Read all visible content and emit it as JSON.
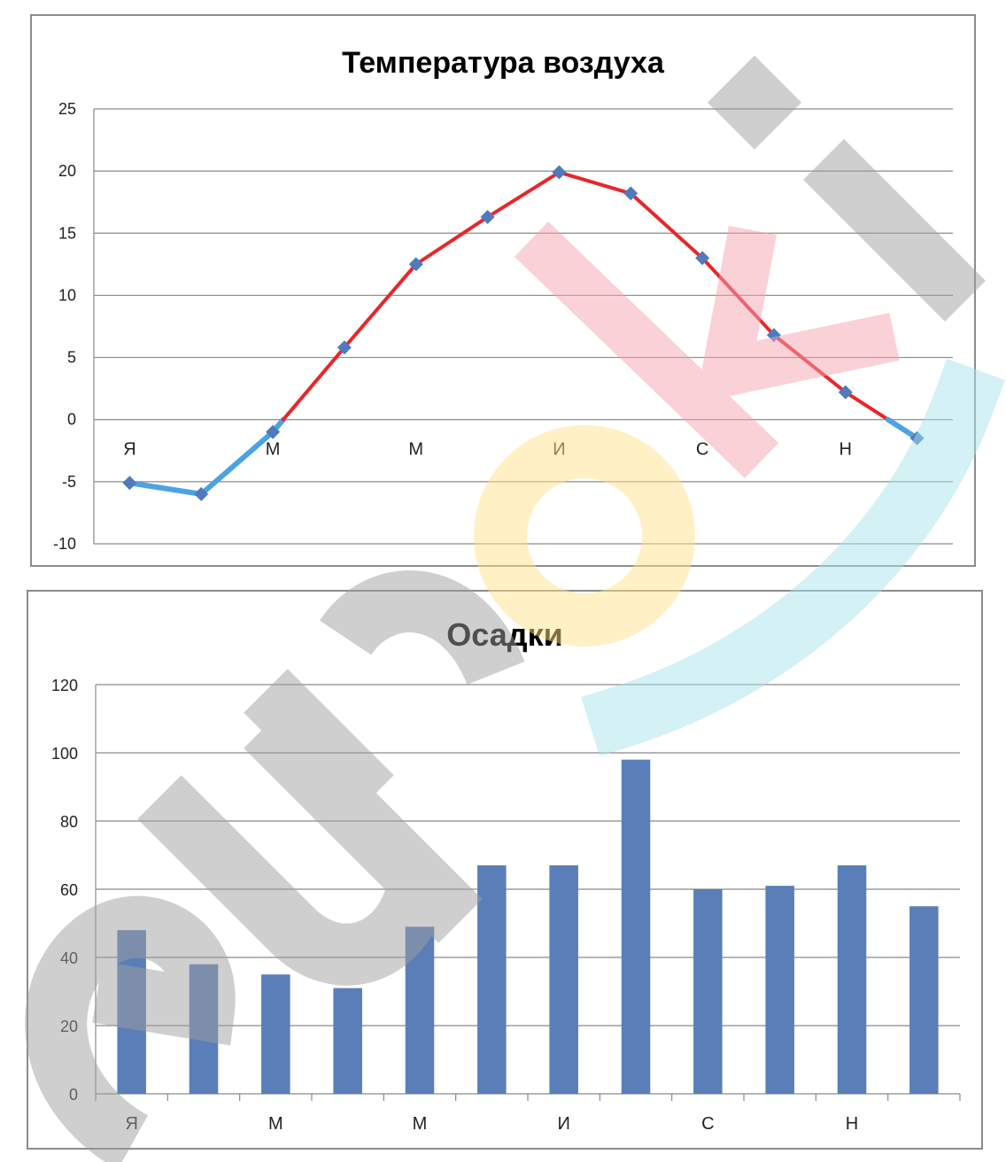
{
  "chart_data": [
    {
      "type": "line",
      "title": "Температура воздуха",
      "categories": [
        "Я",
        "",
        "М",
        "",
        "М",
        "",
        "И",
        "",
        "С",
        "",
        "Н",
        ""
      ],
      "series": [
        {
          "values": [
            -5.1,
            -6,
            -1,
            5.8,
            12.5,
            16.3,
            19.9,
            18.2,
            13,
            6.8,
            2.2,
            -1.5
          ]
        }
      ],
      "ylim": [
        -10,
        25
      ],
      "yticks": [
        25,
        20,
        15,
        10,
        5,
        0,
        -5,
        -10
      ],
      "grid": true,
      "colors": {
        "above_zero": "#e8262a",
        "below_zero": "#4ba3e3",
        "marker": "#4f7bbd"
      }
    },
    {
      "type": "bar",
      "title": "Осадки",
      "categories": [
        "Я",
        "",
        "М",
        "",
        "М",
        "",
        "И",
        "",
        "С",
        "",
        "Н",
        ""
      ],
      "series": [
        {
          "values": [
            48,
            38,
            35,
            31,
            49,
            67,
            67,
            98,
            60,
            61,
            67,
            55
          ]
        }
      ],
      "ylim": [
        0,
        120
      ],
      "yticks": [
        120,
        100,
        80,
        60,
        40,
        20,
        0
      ],
      "grid": true,
      "colors": {
        "bar": "#5a7fb8"
      }
    }
  ],
  "watermark": {
    "text": "euroki",
    "colors": [
      "#9e9e9e",
      "#f4a3ae",
      "#ffe28a",
      "#a8e2ea"
    ]
  }
}
